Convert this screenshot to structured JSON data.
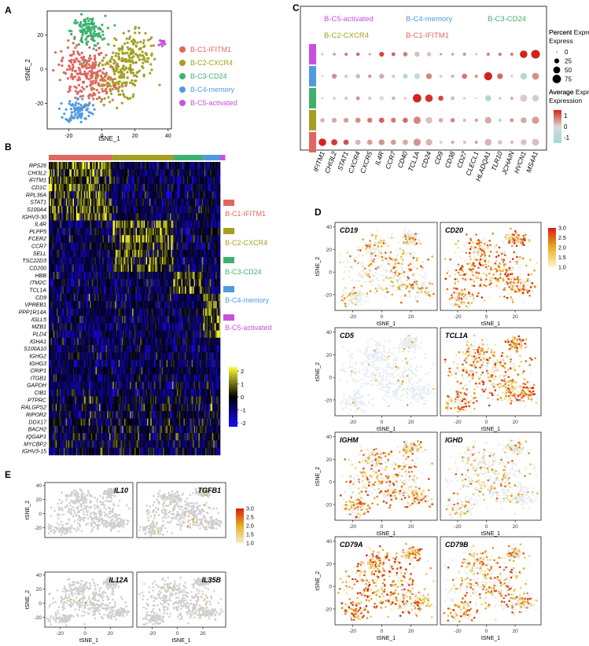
{
  "panel_labels": [
    "A",
    "B",
    "C",
    "D",
    "E"
  ],
  "clusters": [
    {
      "name": "B-C1-IFITM1",
      "color": "#e0675f"
    },
    {
      "name": "B-C2-CXCR4",
      "color": "#a3a021"
    },
    {
      "name": "B-C3-CD24",
      "color": "#3fb16f"
    },
    {
      "name": "B-C4-memory",
      "color": "#4f9be0"
    },
    {
      "name": "B-C5-activated",
      "color": "#c84fe0"
    }
  ],
  "chart_data": [
    {
      "id": "A",
      "type": "scatter",
      "title": "",
      "xlabel": "tSNE_1",
      "ylabel": "tSNE_2",
      "xticks": [
        -20,
        0,
        20,
        40
      ],
      "yticks": [
        -20,
        0,
        20
      ],
      "xlim": [
        -33,
        42
      ],
      "ylim": [
        -35,
        34
      ],
      "series": [
        {
          "name": "B-C1-IFITM1",
          "centers": [
            [
              -12,
              3
            ],
            [
              -5,
              -8
            ]
          ]
        },
        {
          "name": "B-C2-CXCR4",
          "centers": [
            [
              18,
              8
            ],
            [
              12,
              -5
            ]
          ]
        },
        {
          "name": "B-C3-CD24",
          "centers": [
            [
              -8,
              22
            ]
          ]
        },
        {
          "name": "B-C4-memory",
          "centers": [
            [
              -14,
              -24
            ]
          ]
        },
        {
          "name": "B-C5-activated",
          "centers": [
            [
              36,
              15
            ]
          ]
        }
      ]
    },
    {
      "id": "B",
      "type": "heatmap",
      "genes": [
        "RPS26",
        "CHI3L2",
        "IFITM1",
        "CD1C",
        "RPL36A",
        "STAT1",
        "S100A4",
        "IGHV3-30",
        "IL4R",
        "PLPP5",
        "FCER2",
        "CCR7",
        "SELL",
        "TSC22D3",
        "CD200",
        "HBB",
        "ITM2C",
        "TCL1A",
        "CD9",
        "VPREB1",
        "PPP1R14A",
        "IGLL5",
        "MZB1",
        "PLD4",
        "IGHA1",
        "S100A10",
        "IGHG2",
        "IGHG3",
        "CRIP1",
        "ITGB1",
        "GAPDH",
        "CIB1",
        "PTPRC",
        "RALGPS2",
        "RIPOR2",
        "DDX17",
        "BACH2",
        "IQGAP1",
        "MYCBP2",
        "IGHV3-15"
      ],
      "cluster_fractions": [
        0.37,
        0.36,
        0.17,
        0.1,
        0.03
      ],
      "colorbar": {
        "ticks": [
          2,
          1,
          0,
          -1,
          -2
        ],
        "range": [
          -2.3,
          2.3
        ],
        "colors": [
          "#1a08ff",
          "#000000",
          "#ffff33"
        ]
      }
    },
    {
      "id": "C",
      "type": "dotplot",
      "genes": [
        "IFITM1",
        "CHI3L2",
        "STAT1",
        "CXCR4",
        "CXCR5",
        "IL4R",
        "CCR7",
        "CD40",
        "TCL1A",
        "CD24",
        "CD9",
        "CD38",
        "CD27",
        "CLECL1",
        "HLADQA1",
        "TLR10",
        "JCHAIN",
        "HVCN1",
        "MS4A1"
      ],
      "rows": [
        "B-C5-activated",
        "B-C4-memory",
        "B-C3-CD24",
        "B-C2-CXCR4",
        "B-C1-IFITM1"
      ],
      "percent": [
        [
          5,
          8,
          10,
          12,
          6,
          25,
          15,
          20,
          28,
          20,
          6,
          8,
          10,
          4,
          12,
          10,
          10,
          60,
          80
        ],
        [
          5,
          25,
          10,
          20,
          12,
          25,
          10,
          25,
          35,
          35,
          10,
          12,
          30,
          10,
          70,
          35,
          6,
          45,
          50
        ],
        [
          5,
          10,
          10,
          15,
          10,
          20,
          12,
          10,
          75,
          60,
          28,
          15,
          8,
          4,
          40,
          10,
          10,
          55,
          45
        ],
        [
          20,
          25,
          25,
          30,
          25,
          30,
          25,
          28,
          55,
          45,
          20,
          20,
          10,
          12,
          45,
          10,
          15,
          35,
          55
        ],
        [
          60,
          40,
          30,
          30,
          30,
          35,
          30,
          30,
          55,
          45,
          12,
          12,
          10,
          10,
          50,
          20,
          10,
          35,
          50
        ]
      ],
      "expression": [
        [
          0.3,
          0.6,
          0.8,
          1.0,
          0.5,
          1.2,
          1.0,
          0.8,
          0.2,
          0.2,
          0.6,
          0.5,
          0.6,
          0.5,
          0.7,
          0.9,
          0.8,
          1.5,
          1.6
        ],
        [
          -0.2,
          0.6,
          0.2,
          0.3,
          0.6,
          0.4,
          0.2,
          -1.0,
          -0.5,
          0.7,
          -0.4,
          0.3,
          0.8,
          0.6,
          1.8,
          0.9,
          0.2,
          -1.0,
          0.6
        ],
        [
          0.1,
          -0.2,
          0.2,
          0.6,
          0.2,
          0.0,
          0.4,
          0.0,
          1.8,
          1.4,
          1.2,
          0.3,
          -0.5,
          0.1,
          -1.1,
          -0.5,
          0.4,
          0.1,
          0.1
        ],
        [
          0.3,
          0.4,
          0.5,
          0.6,
          0.8,
          1.0,
          0.8,
          0.9,
          0.7,
          0.2,
          0.4,
          0.7,
          0.3,
          0.5,
          0.4,
          -1.2,
          0.6,
          0.4,
          0.5
        ],
        [
          1.5,
          1.3,
          1.1,
          0.3,
          0.5,
          0.6,
          0.5,
          0.4,
          0.6,
          0.3,
          -0.3,
          0.4,
          0.2,
          0.5,
          0.3,
          0.2,
          0.3,
          0.2,
          0.2
        ]
      ],
      "legend_percent": {
        "title": "Percent Express",
        "ticks": [
          0,
          25,
          50,
          75
        ]
      },
      "legend_expression": {
        "title": "Average Expression",
        "ticks": [
          1,
          0,
          -1
        ],
        "range": [
          -1.5,
          1.5
        ],
        "colors": [
          "#a3d5da",
          "#d9d9d9",
          "#d0241a"
        ]
      }
    },
    {
      "id": "D",
      "type": "feature-scatter",
      "genes": [
        "CD19",
        "CD20",
        "CD5",
        "TCL1A",
        "IGHM",
        "IGHD",
        "CD79A",
        "CD79B"
      ],
      "density": [
        0.45,
        0.75,
        0.04,
        0.72,
        0.6,
        0.35,
        0.8,
        0.6
      ],
      "xlabel": "tSNE_1",
      "ylabel": "tSNE_2",
      "xticks": [
        -20,
        0,
        20
      ],
      "yticks": [
        -20,
        0,
        20,
        40
      ],
      "xlim": [
        -32,
        38
      ],
      "ylim": [
        -34,
        44
      ],
      "colorbar": {
        "ticks": [
          3.0,
          2.5,
          2.0,
          1.5,
          1.0
        ],
        "range": [
          1.0,
          3.0
        ],
        "colors": [
          "#fbf5cd",
          "#e8b020",
          "#d81e10"
        ]
      }
    },
    {
      "id": "E",
      "type": "feature-scatter",
      "genes": [
        "IL10",
        "TGFB1",
        "IL12A",
        "IL35B"
      ],
      "density": [
        0.0,
        0.06,
        0.01,
        0.02
      ],
      "xlabel": "tSNE_1",
      "ylabel": "tSNE_2",
      "xticks": [
        -20,
        0,
        20
      ],
      "yticks": [
        -20,
        0,
        20,
        40
      ],
      "xlim": [
        -32,
        38
      ],
      "ylim": [
        -34,
        44
      ],
      "colorbar": {
        "ticks": [
          3.0,
          2.5,
          2.0,
          1.5,
          1.0
        ],
        "range": [
          1.0,
          3.0
        ],
        "colors": [
          "#f4ecd0",
          "#e8b020",
          "#d81e10"
        ]
      }
    }
  ]
}
